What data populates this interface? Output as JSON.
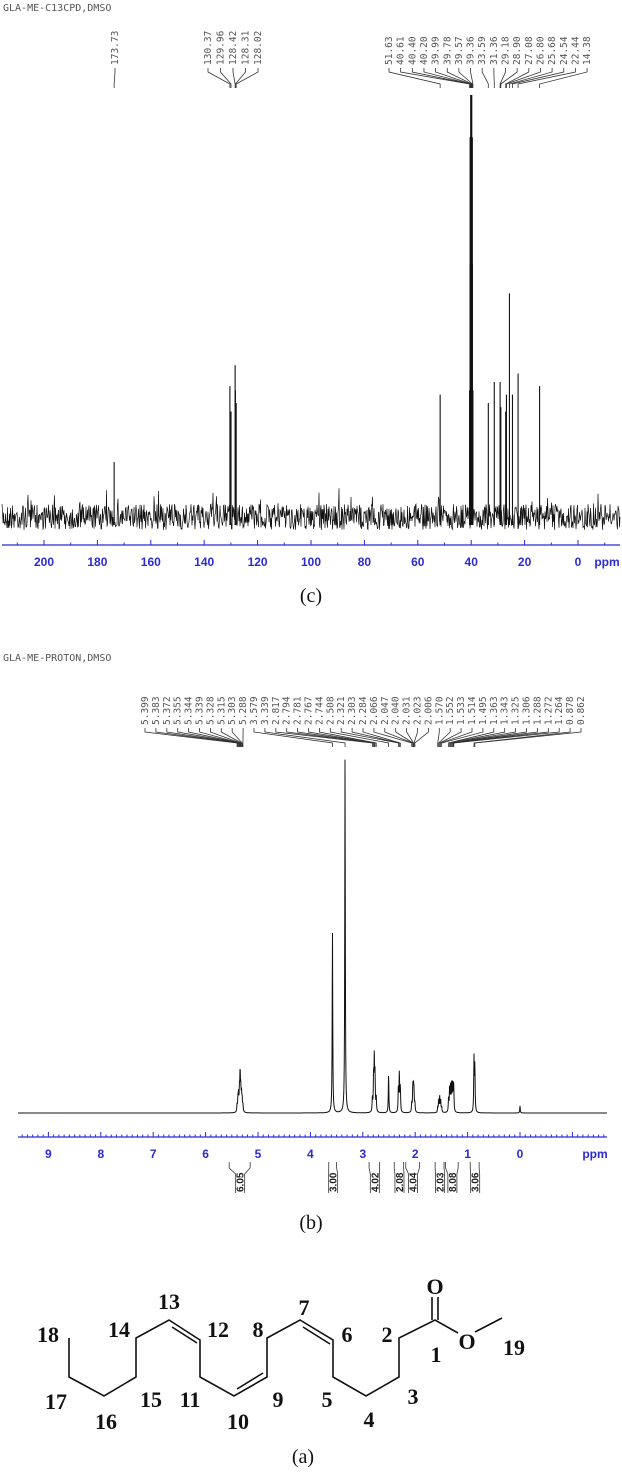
{
  "colors": {
    "axis": "#2b2bd6",
    "trace": "#111111",
    "label": "#555555"
  },
  "chart_data": [
    {
      "type": "line",
      "panel": "(c)",
      "title": "GLA-ME-C13CPD,DMSO",
      "xlabel": "ppm",
      "xlim": [
        215,
        -16
      ],
      "x_reversed": true,
      "xticks": [
        200,
        180,
        160,
        140,
        120,
        100,
        80,
        60,
        40,
        20,
        0
      ],
      "grid": false,
      "peak_labels": [
        "173.73",
        "130.37",
        "129.96",
        "128.42",
        "128.31",
        "128.02",
        "51.63",
        "40.61",
        "40.40",
        "40.20",
        "39.99",
        "39.78",
        "39.57",
        "39.36",
        "33.59",
        "31.36",
        "29.18",
        "28.90",
        "27.08",
        "26.80",
        "25.68",
        "24.54",
        "22.44",
        "14.38"
      ],
      "peaks": [
        {
          "ppm": 173.73,
          "intensity": 0.13
        },
        {
          "ppm": 130.37,
          "intensity": 0.31
        },
        {
          "ppm": 129.96,
          "intensity": 0.25
        },
        {
          "ppm": 128.42,
          "intensity": 0.36
        },
        {
          "ppm": 128.31,
          "intensity": 0.3
        },
        {
          "ppm": 128.02,
          "intensity": 0.27
        },
        {
          "ppm": 51.63,
          "intensity": 0.29
        },
        {
          "ppm": 40.61,
          "intensity": 0.3
        },
        {
          "ppm": 40.4,
          "intensity": 0.6
        },
        {
          "ppm": 40.2,
          "intensity": 0.9
        },
        {
          "ppm": 39.99,
          "intensity": 1.0
        },
        {
          "ppm": 39.78,
          "intensity": 0.9
        },
        {
          "ppm": 39.57,
          "intensity": 0.6
        },
        {
          "ppm": 39.36,
          "intensity": 0.3
        },
        {
          "ppm": 33.59,
          "intensity": 0.27
        },
        {
          "ppm": 31.36,
          "intensity": 0.32
        },
        {
          "ppm": 29.18,
          "intensity": 0.32
        },
        {
          "ppm": 28.9,
          "intensity": 0.26
        },
        {
          "ppm": 27.08,
          "intensity": 0.25
        },
        {
          "ppm": 26.8,
          "intensity": 0.29
        },
        {
          "ppm": 25.68,
          "intensity": 0.53
        },
        {
          "ppm": 24.54,
          "intensity": 0.29
        },
        {
          "ppm": 22.44,
          "intensity": 0.34
        },
        {
          "ppm": 14.38,
          "intensity": 0.31
        }
      ]
    },
    {
      "type": "line",
      "panel": "(b)",
      "title": "GLA-ME-PROTON,DMSO",
      "xlabel": "ppm",
      "xlim": [
        9.55,
        -1.65
      ],
      "x_reversed": true,
      "xticks": [
        9,
        8,
        7,
        6,
        5,
        4,
        3,
        2,
        1,
        0
      ],
      "grid": false,
      "peak_labels": [
        "5.399",
        "5.383",
        "5.372",
        "5.355",
        "5.344",
        "5.339",
        "5.328",
        "5.315",
        "5.303",
        "5.288",
        "3.579",
        "3.339",
        "2.817",
        "2.794",
        "2.781",
        "2.767",
        "2.744",
        "2.508",
        "2.321",
        "2.303",
        "2.284",
        "2.066",
        "2.047",
        "2.040",
        "2.031",
        "2.023",
        "2.006",
        "1.570",
        "1.552",
        "1.533",
        "1.514",
        "1.495",
        "1.363",
        "1.343",
        "1.325",
        "1.306",
        "1.288",
        "1.272",
        "1.264",
        "0.878",
        "0.862"
      ],
      "peaks": [
        {
          "ppm": 5.399,
          "intensity": 0.02
        },
        {
          "ppm": 5.383,
          "intensity": 0.035
        },
        {
          "ppm": 5.372,
          "intensity": 0.045
        },
        {
          "ppm": 5.355,
          "intensity": 0.055
        },
        {
          "ppm": 5.344,
          "intensity": 0.06
        },
        {
          "ppm": 5.339,
          "intensity": 0.06
        },
        {
          "ppm": 5.328,
          "intensity": 0.055
        },
        {
          "ppm": 5.315,
          "intensity": 0.045
        },
        {
          "ppm": 5.303,
          "intensity": 0.035
        },
        {
          "ppm": 5.288,
          "intensity": 0.02
        },
        {
          "ppm": 3.579,
          "intensity": 0.51
        },
        {
          "ppm": 3.339,
          "intensity": 1.0
        },
        {
          "ppm": 2.817,
          "intensity": 0.04
        },
        {
          "ppm": 2.794,
          "intensity": 0.1
        },
        {
          "ppm": 2.781,
          "intensity": 0.14
        },
        {
          "ppm": 2.767,
          "intensity": 0.1
        },
        {
          "ppm": 2.744,
          "intensity": 0.04
        },
        {
          "ppm": 2.508,
          "intensity": 0.11
        },
        {
          "ppm": 2.321,
          "intensity": 0.07
        },
        {
          "ppm": 2.303,
          "intensity": 0.11
        },
        {
          "ppm": 2.284,
          "intensity": 0.07
        },
        {
          "ppm": 2.066,
          "intensity": 0.025
        },
        {
          "ppm": 2.047,
          "intensity": 0.045
        },
        {
          "ppm": 2.04,
          "intensity": 0.05
        },
        {
          "ppm": 2.031,
          "intensity": 0.05
        },
        {
          "ppm": 2.023,
          "intensity": 0.045
        },
        {
          "ppm": 2.006,
          "intensity": 0.025
        },
        {
          "ppm": 1.57,
          "intensity": 0.015
        },
        {
          "ppm": 1.552,
          "intensity": 0.035
        },
        {
          "ppm": 1.533,
          "intensity": 0.045
        },
        {
          "ppm": 1.514,
          "intensity": 0.035
        },
        {
          "ppm": 1.495,
          "intensity": 0.015
        },
        {
          "ppm": 1.363,
          "intensity": 0.04
        },
        {
          "ppm": 1.343,
          "intensity": 0.07
        },
        {
          "ppm": 1.325,
          "intensity": 0.07
        },
        {
          "ppm": 1.306,
          "intensity": 0.075
        },
        {
          "ppm": 1.288,
          "intensity": 0.07
        },
        {
          "ppm": 1.272,
          "intensity": 0.06
        },
        {
          "ppm": 1.264,
          "intensity": 0.05
        },
        {
          "ppm": 0.878,
          "intensity": 0.15
        },
        {
          "ppm": 0.862,
          "intensity": 0.13
        },
        {
          "ppm": 0.0,
          "intensity": 0.02
        }
      ],
      "integrals": [
        {
          "from": 5.55,
          "to": 5.15,
          "value": "6.05"
        },
        {
          "from": 3.65,
          "to": 3.5,
          "value": "3.00"
        },
        {
          "from": 2.88,
          "to": 2.68,
          "value": "4.02"
        },
        {
          "from": 2.4,
          "to": 2.22,
          "value": "2.08"
        },
        {
          "from": 2.18,
          "to": 1.92,
          "value": "4.04"
        },
        {
          "from": 1.62,
          "to": 1.45,
          "value": "2.03"
        },
        {
          "from": 1.42,
          "to": 1.18,
          "value": "8.08"
        },
        {
          "from": 0.95,
          "to": 0.78,
          "value": "3.06"
        }
      ]
    }
  ],
  "structure": {
    "caption": "(a)",
    "oxygen_carbonyl": "O",
    "oxygen_ester": "O",
    "atom_numbers": [
      "18",
      "17",
      "16",
      "15",
      "14",
      "13",
      "12",
      "11",
      "10",
      "9",
      "8",
      "7",
      "6",
      "5",
      "4",
      "3",
      "2",
      "1",
      "19"
    ]
  }
}
